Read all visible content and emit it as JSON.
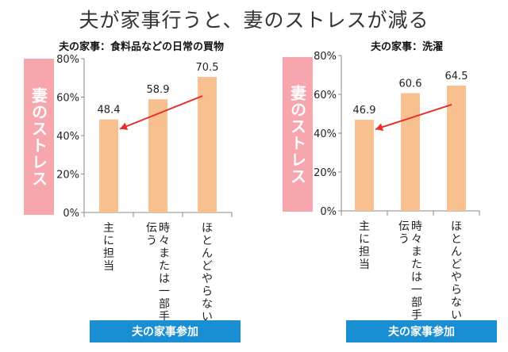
{
  "title": "夫が家事行うと、妻のストレスが減る",
  "colors": {
    "bar": "#f9c08f",
    "arrow": "#e8302a",
    "stress_band": "#f7a6ae",
    "x_band": "#1a8ed2"
  },
  "chart_data": [
    {
      "type": "bar",
      "title": "夫の家事：食料品などの日常の買物",
      "ylabel": "妻のストレス",
      "xlabel": "夫の家事参加",
      "categories": [
        "主に担当",
        "時々または一部手伝う",
        "ほとんどやらない"
      ],
      "values": [
        48.4,
        58.9,
        70.5
      ],
      "value_labels": [
        "48.4",
        "58.9",
        "70.5"
      ],
      "yticks": [
        "0%",
        "20%",
        "40%",
        "60%",
        "80%"
      ],
      "ylim": [
        0,
        80
      ],
      "grid": false,
      "annotation": "arrow from ほとんどやらない down to 主に担当"
    },
    {
      "type": "bar",
      "title": "夫の家事：洗濯",
      "ylabel": "妻のストレス",
      "xlabel": "夫の家事参加",
      "categories": [
        "主に担当",
        "時々または一部手伝う",
        "ほとんどやらない"
      ],
      "values": [
        46.9,
        60.6,
        64.5
      ],
      "value_labels": [
        "46.9",
        "60.6",
        "64.5"
      ],
      "yticks": [
        "0%",
        "20%",
        "40%",
        "60%",
        "80%"
      ],
      "ylim": [
        0,
        80
      ],
      "grid": false,
      "annotation": "arrow from ほとんどやらない down to 主に担当"
    }
  ]
}
